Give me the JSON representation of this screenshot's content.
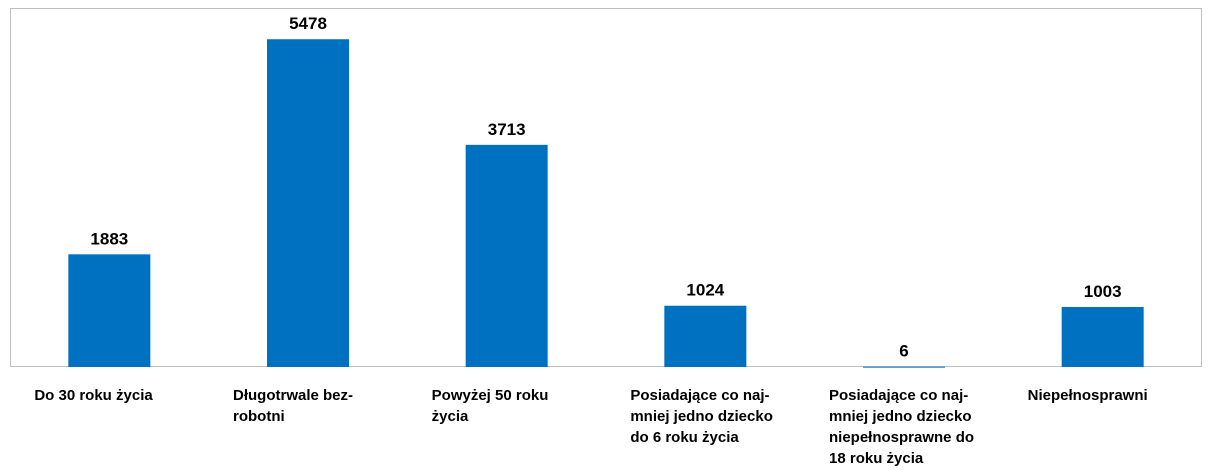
{
  "chart_data": {
    "type": "bar",
    "categories": [
      [
        "Do 30 roku życia"
      ],
      [
        "Długotrwale bez-",
        "robotni"
      ],
      [
        "Powyżej 50 roku",
        "życia"
      ],
      [
        "Posiadające co naj-",
        "mniej jedno dziecko",
        "do 6 roku życia"
      ],
      [
        "Posiadające co naj-",
        "mniej jedno dziecko",
        "niepełnosprawne do",
        "18 roku życia"
      ],
      [
        "Niepełnosprawni"
      ]
    ],
    "values": [
      1883,
      5478,
      3713,
      1024,
      6,
      1003
    ],
    "color": "#0070c0",
    "ylim": [
      0,
      6000
    ]
  }
}
